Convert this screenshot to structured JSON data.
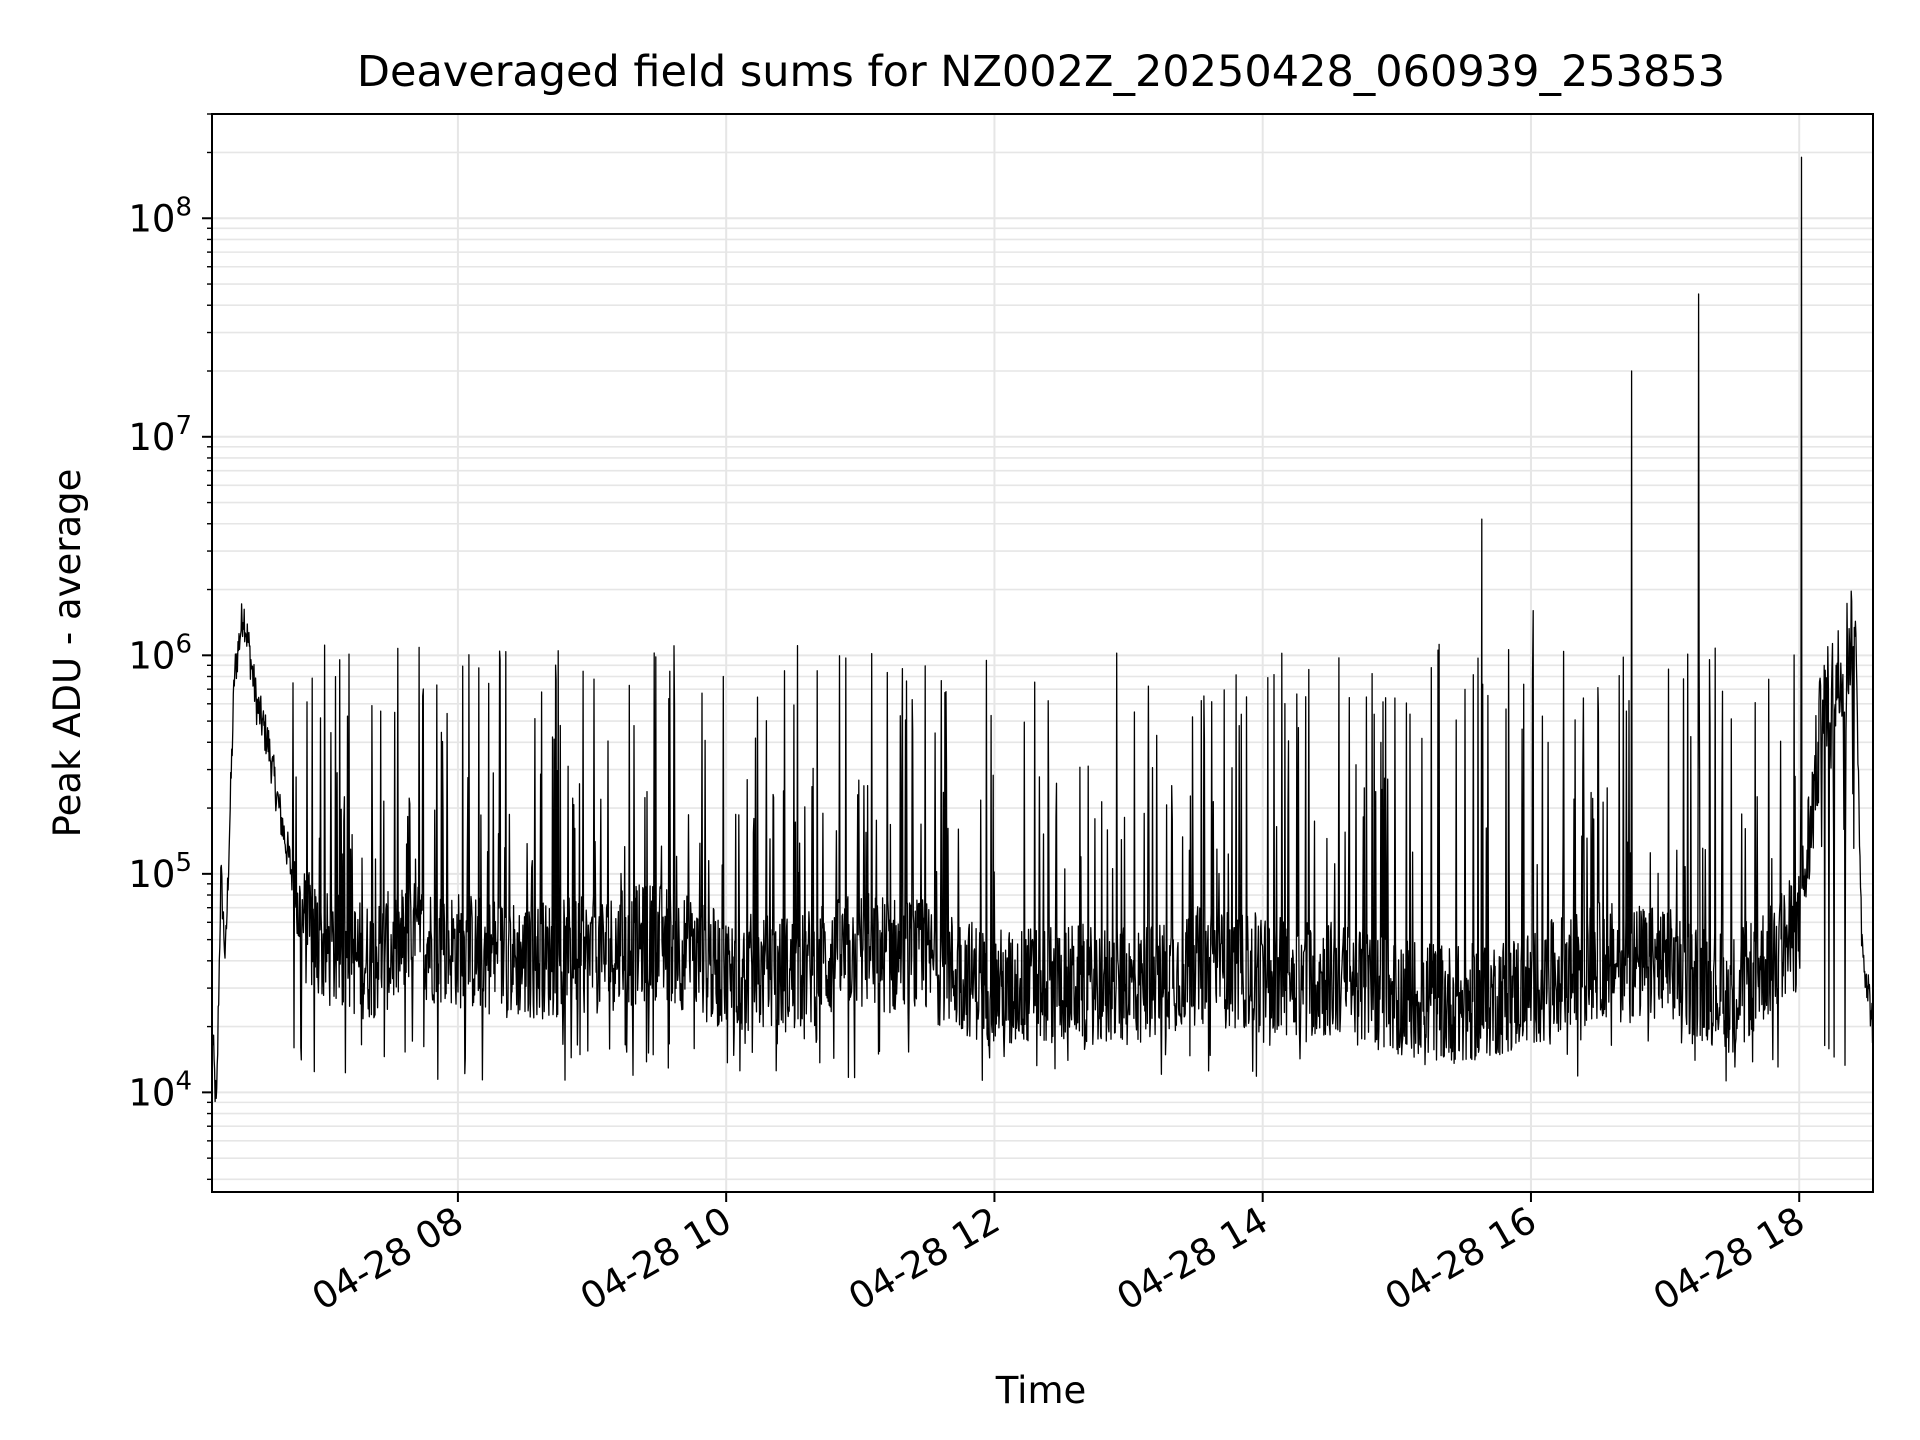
{
  "chart_data": {
    "type": "line",
    "title": "Deaveraged field sums for NZ002Z_20250428_060939_253853",
    "xlabel": "Time",
    "ylabel": "Peak ADU - average",
    "y_scale": "log",
    "ylim": [
      3500,
      300000000
    ],
    "xlim": [
      "2025-04-28 06:10",
      "2025-04-28 18:33"
    ],
    "x_ticks": [
      {
        "value": "2025-04-28 08:00",
        "label": "04-28 08"
      },
      {
        "value": "2025-04-28 10:00",
        "label": "04-28 10"
      },
      {
        "value": "2025-04-28 12:00",
        "label": "04-28 12"
      },
      {
        "value": "2025-04-28 14:00",
        "label": "04-28 14"
      },
      {
        "value": "2025-04-28 16:00",
        "label": "04-28 16"
      },
      {
        "value": "2025-04-28 18:00",
        "label": "04-28 18"
      }
    ],
    "y_ticks": [
      {
        "value": 10000,
        "base": "10",
        "exp": "4"
      },
      {
        "value": 100000,
        "base": "10",
        "exp": "5"
      },
      {
        "value": 1000000,
        "base": "10",
        "exp": "6"
      },
      {
        "value": 10000000,
        "base": "10",
        "exp": "7"
      },
      {
        "value": 100000000,
        "base": "10",
        "exp": "8"
      }
    ],
    "grid": true,
    "line_color": "#000000",
    "grid_color": "#e6e6e6",
    "series": [
      {
        "x": [
          "2025-04-28 06:10",
          "2025-04-28 06:12",
          "2025-04-28 06:14",
          "2025-04-28 06:16",
          "2025-04-28 06:20",
          "2025-04-28 06:24",
          "2025-04-28 06:27",
          "2025-04-28 06:30",
          "2025-04-28 06:35",
          "2025-04-28 06:40",
          "2025-04-28 06:50",
          "2025-04-28 07:00",
          "2025-04-28 07:20",
          "2025-04-28 07:40",
          "2025-04-28 08:00",
          "2025-04-28 08:30",
          "2025-04-28 09:00",
          "2025-04-28 09:30",
          "2025-04-28 10:00",
          "2025-04-28 10:30",
          "2025-04-28 11:00",
          "2025-04-28 11:30",
          "2025-04-28 12:00",
          "2025-04-28 12:30",
          "2025-04-28 13:00",
          "2025-04-28 13:30",
          "2025-04-28 14:00",
          "2025-04-28 14:30",
          "2025-04-28 15:00",
          "2025-04-28 15:30",
          "2025-04-28 16:00",
          "2025-04-28 16:30",
          "2025-04-28 17:00",
          "2025-04-28 17:30",
          "2025-04-28 18:00",
          "2025-04-28 18:10",
          "2025-04-28 18:20",
          "2025-04-28 18:25",
          "2025-04-28 18:28",
          "2025-04-28 18:33"
        ],
        "y": [
          20000,
          8000,
          100000,
          40000,
          800000,
          1600000,
          1000000,
          600000,
          400000,
          200000,
          60000,
          45000,
          40000,
          50000,
          45000,
          40000,
          42000,
          50000,
          35000,
          35000,
          45000,
          40000,
          30000,
          32000,
          30000,
          38000,
          35000,
          33000,
          28000,
          25000,
          30000,
          40000,
          38000,
          28000,
          55000,
          500000,
          900000,
          1500000,
          50000,
          20000
        ]
      }
    ],
    "spikes": [
      {
        "x": "2025-04-28 15:38",
        "y": 4200000
      },
      {
        "x": "2025-04-28 16:01",
        "y": 1600000
      },
      {
        "x": "2025-04-28 16:45",
        "y": 20000000
      },
      {
        "x": "2025-04-28 17:15",
        "y": 45000000
      },
      {
        "x": "2025-04-28 18:01",
        "y": 190000000
      }
    ]
  }
}
